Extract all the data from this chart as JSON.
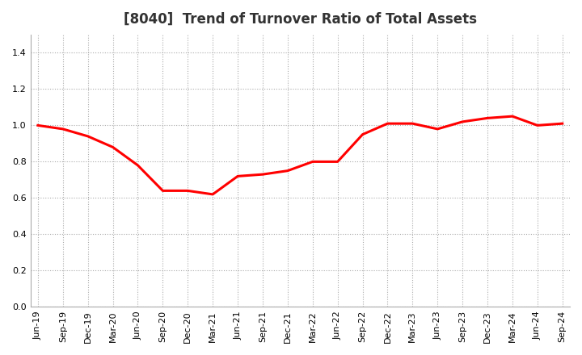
{
  "title": "[8040]  Trend of Turnover Ratio of Total Assets",
  "x_labels": [
    "Jun-19",
    "Sep-19",
    "Dec-19",
    "Mar-20",
    "Jun-20",
    "Sep-20",
    "Dec-20",
    "Mar-21",
    "Jun-21",
    "Sep-21",
    "Dec-21",
    "Mar-22",
    "Jun-22",
    "Sep-22",
    "Dec-22",
    "Mar-23",
    "Jun-23",
    "Sep-23",
    "Dec-23",
    "Mar-24",
    "Jun-24",
    "Sep-24"
  ],
  "y_values": [
    1.0,
    0.98,
    0.94,
    0.88,
    0.78,
    0.64,
    0.64,
    0.62,
    0.72,
    0.73,
    0.75,
    0.8,
    0.8,
    0.95,
    1.01,
    1.01,
    0.98,
    1.02,
    1.04,
    1.05,
    1.0,
    1.01
  ],
  "line_color": "#FF0000",
  "line_width": 2.2,
  "ylim": [
    0.0,
    1.5
  ],
  "yticks": [
    0.0,
    0.2,
    0.4,
    0.6,
    0.8,
    1.0,
    1.2,
    1.4
  ],
  "grid_color": "#AAAAAA",
  "grid_linestyle": ":",
  "background_color": "#FFFFFF",
  "title_fontsize": 12,
  "tick_fontsize": 8,
  "title_color": "#333333"
}
